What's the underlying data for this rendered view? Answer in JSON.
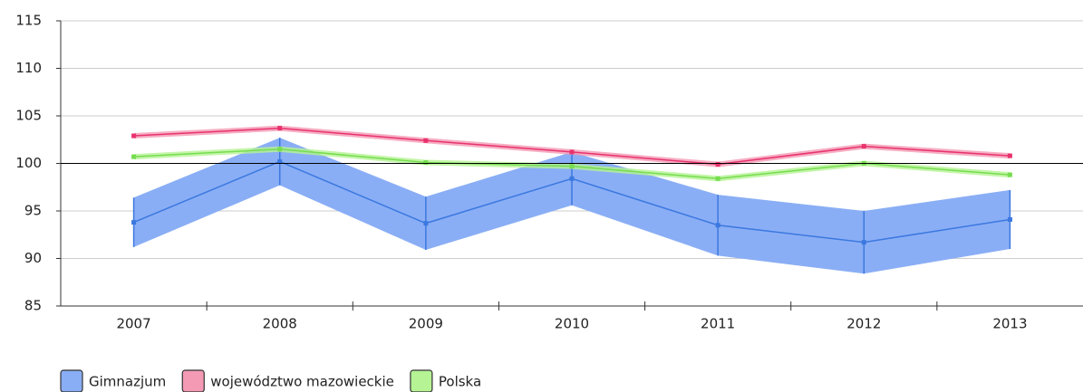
{
  "chart_data": {
    "type": "line",
    "categories": [
      "2007",
      "2008",
      "2009",
      "2010",
      "2011",
      "2012",
      "2013"
    ],
    "series": [
      {
        "name": "Gimnazjum",
        "color": "#3b78e0",
        "band_color": "#8aaef5",
        "values": [
          93.8,
          100.2,
          93.7,
          98.4,
          93.5,
          91.7,
          94.1
        ],
        "errors": [
          2.6,
          2.5,
          2.8,
          2.8,
          3.2,
          3.3,
          3.1
        ]
      },
      {
        "name": "województwo mazowieckie",
        "color": "#e8336e",
        "band_color": "#f49ab4",
        "values": [
          102.9,
          103.7,
          102.4,
          101.2,
          99.9,
          101.8,
          100.8
        ]
      },
      {
        "name": "Polska",
        "color": "#76dd50",
        "band_color": "#b5f394",
        "values": [
          100.7,
          101.5,
          100.1,
          99.7,
          98.4,
          100.0,
          98.8
        ]
      }
    ],
    "ylim": [
      85,
      115
    ],
    "yticks": [
      85,
      90,
      95,
      100,
      105,
      110,
      115
    ],
    "reference": 100,
    "grid": true,
    "legend": "bottom-left"
  }
}
